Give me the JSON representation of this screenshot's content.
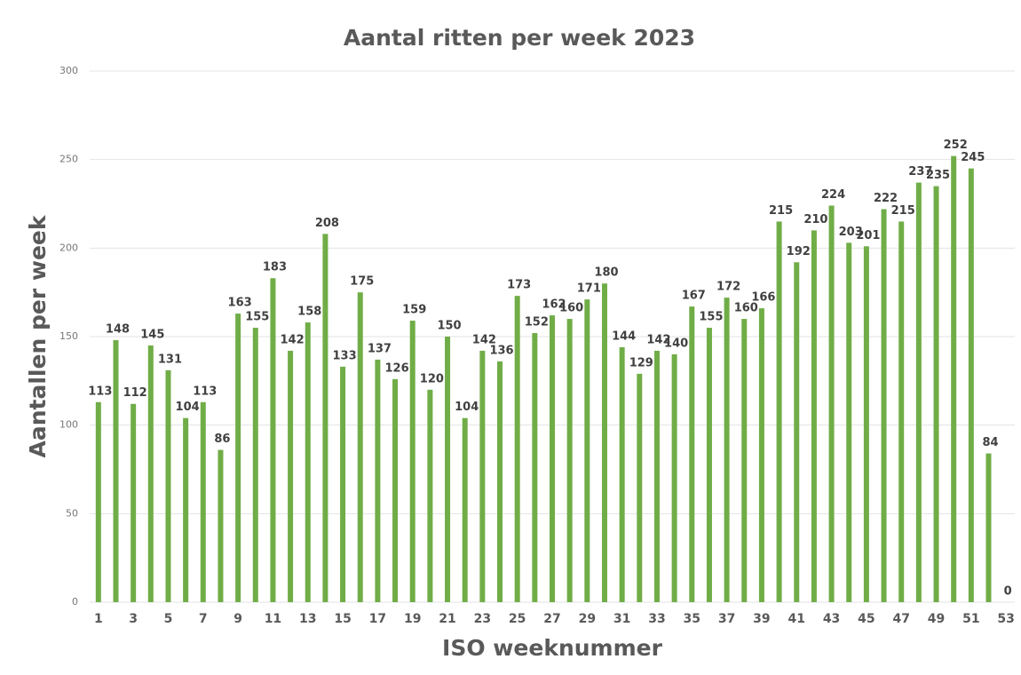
{
  "chart_data": {
    "type": "bar",
    "title": "Aantal ritten per week 2023",
    "x_label": "ISO weeknummer",
    "y_label": "Aantallen per week",
    "categories": [
      "1",
      null,
      "3",
      null,
      "5",
      null,
      "7",
      null,
      "9",
      null,
      "11",
      null,
      "13",
      null,
      "15",
      null,
      "17",
      null,
      "19",
      null,
      "21",
      null,
      "23",
      null,
      "25",
      null,
      "27",
      null,
      "29",
      null,
      "31",
      null,
      "33",
      null,
      "35",
      null,
      "37",
      null,
      "39",
      null,
      "41",
      null,
      "43",
      null,
      "45",
      null,
      "47",
      null,
      "49",
      null,
      "51",
      null,
      "53"
    ],
    "values": [
      113,
      148,
      112,
      145,
      131,
      104,
      113,
      86,
      163,
      155,
      183,
      142,
      158,
      208,
      133,
      175,
      137,
      126,
      159,
      120,
      150,
      104,
      142,
      136,
      173,
      152,
      162,
      160,
      171,
      180,
      144,
      129,
      142,
      140,
      167,
      155,
      172,
      160,
      166,
      215,
      192,
      210,
      224,
      203,
      201,
      222,
      215,
      237,
      235,
      252,
      245,
      84,
      0
    ],
    "color": "#70ad47",
    "ylim": [
      0,
      300
    ],
    "yticks": [
      0,
      50,
      100,
      150,
      200,
      250,
      300
    ],
    "grid": true
  }
}
